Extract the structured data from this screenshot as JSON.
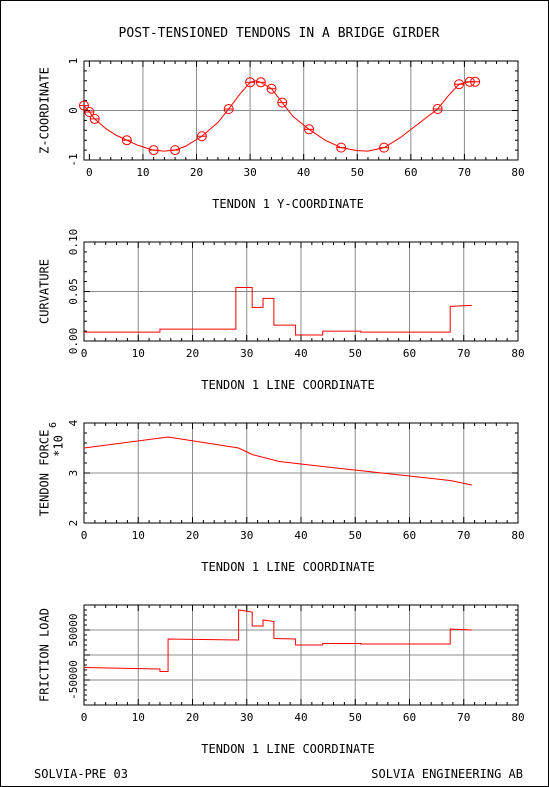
{
  "title": "POST-TENSIONED TENDONS IN A BRIDGE GIRDER",
  "footer": {
    "left": "SOLVIA-PRE 03",
    "right": "SOLVIA ENGINEERING AB"
  },
  "colors": {
    "curve": "#ff0000",
    "grid": "#8c8c8c",
    "axis": "#000000"
  },
  "chart_data": [
    {
      "type": "line",
      "xlabel": "TENDON 1 Y-COORDINATE",
      "ylabel": "Z-COORDINATE",
      "xlim": [
        -1,
        80
      ],
      "ylim": [
        -1,
        1
      ],
      "xticks": [
        0,
        10,
        20,
        30,
        40,
        50,
        60,
        70,
        80
      ],
      "yticks": [
        -1,
        0,
        1
      ],
      "ytick_labels": [
        "-1",
        "0",
        "1"
      ],
      "grid": true,
      "markers": "circle",
      "series": [
        {
          "x": [
            -1,
            0,
            1,
            7,
            12,
            16,
            21,
            26,
            30,
            32,
            34,
            36,
            41,
            47,
            55,
            65,
            69,
            71,
            72
          ],
          "y": [
            0.1,
            -0.03,
            -0.17,
            -0.6,
            -0.8,
            -0.8,
            -0.52,
            0.03,
            0.57,
            0.57,
            0.44,
            0.16,
            -0.38,
            -0.75,
            -0.75,
            0.03,
            0.53,
            0.58,
            0.58
          ]
        }
      ],
      "line": {
        "x": [
          -1,
          0,
          1,
          3,
          5,
          7,
          9,
          11,
          12,
          14,
          16,
          18,
          21,
          24,
          26,
          28,
          30,
          31,
          32,
          34,
          36,
          38,
          41,
          44,
          47,
          50,
          52,
          55,
          58,
          61,
          65,
          67,
          69,
          71,
          72
        ],
        "y": [
          0.1,
          -0.03,
          -0.17,
          -0.36,
          -0.5,
          -0.6,
          -0.7,
          -0.77,
          -0.8,
          -0.82,
          -0.8,
          -0.72,
          -0.52,
          -0.24,
          0.03,
          0.32,
          0.57,
          0.6,
          0.57,
          0.44,
          0.16,
          -0.12,
          -0.38,
          -0.6,
          -0.75,
          -0.81,
          -0.82,
          -0.75,
          -0.55,
          -0.3,
          0.03,
          0.3,
          0.53,
          0.58,
          0.58
        ]
      }
    },
    {
      "type": "line",
      "xlabel": "TENDON 1 LINE COORDINATE",
      "ylabel": "CURVATURE",
      "xlim": [
        0,
        80
      ],
      "ylim": [
        0,
        0.1
      ],
      "xticks": [
        0,
        10,
        20,
        30,
        40,
        50,
        60,
        70,
        80
      ],
      "yticks": [
        0,
        0.05,
        0.1
      ],
      "ytick_labels": [
        "0.00",
        "0.05",
        "0.10"
      ],
      "grid": true,
      "series": [
        {
          "x": [
            0,
            14,
            14,
            28,
            28,
            31,
            31,
            33,
            33,
            35,
            35,
            39,
            39,
            44,
            44,
            51,
            51,
            67.5,
            67.5,
            71.5
          ],
          "y": [
            0.009,
            0.009,
            0.012,
            0.012,
            0.054,
            0.054,
            0.034,
            0.034,
            0.043,
            0.043,
            0.016,
            0.016,
            0.006,
            0.006,
            0.01,
            0.01,
            0.009,
            0.009,
            0.035,
            0.036
          ]
        }
      ]
    },
    {
      "type": "line",
      "xlabel": "TENDON 1 LINE COORDINATE",
      "ylabel": "TENDON FORCE",
      "yscale_label": "*10",
      "yscale_exp": "6",
      "xlim": [
        0,
        80
      ],
      "ylim": [
        2,
        4
      ],
      "xticks": [
        0,
        10,
        20,
        30,
        40,
        50,
        60,
        70,
        80
      ],
      "yticks": [
        2,
        3,
        4
      ],
      "ytick_labels": [
        "2",
        "3",
        "4"
      ],
      "grid": true,
      "series": [
        {
          "x": [
            0,
            15.5,
            28.5,
            31,
            36,
            44,
            67.5,
            71.5
          ],
          "y": [
            3.5,
            3.72,
            3.5,
            3.37,
            3.23,
            3.13,
            2.85,
            2.76
          ]
        }
      ]
    },
    {
      "type": "line",
      "xlabel": "TENDON 1 LINE COORDINATE",
      "ylabel": "FRICTION LOAD",
      "xlim": [
        0,
        80
      ],
      "ylim": [
        -100000,
        100000
      ],
      "xticks": [
        0,
        10,
        20,
        30,
        40,
        50,
        60,
        70,
        80
      ],
      "yticks": [
        -100000,
        -50000,
        0,
        50000,
        100000
      ],
      "ytick_labels": [
        "",
        "-50000",
        "",
        "50000",
        ""
      ],
      "grid": true,
      "series": [
        {
          "x": [
            0,
            14,
            14,
            15.5,
            15.5,
            28.5,
            28.5,
            31,
            31,
            33,
            33,
            35,
            35,
            39,
            39,
            44,
            44,
            51,
            51,
            67.5,
            67.5,
            71.5
          ],
          "y": [
            -25000,
            -28000,
            -33000,
            -33000,
            32000,
            30000,
            90000,
            86000,
            58000,
            58000,
            70000,
            67000,
            33000,
            32000,
            20000,
            20000,
            23000,
            23000,
            22000,
            22000,
            52000,
            50000
          ]
        }
      ]
    }
  ]
}
